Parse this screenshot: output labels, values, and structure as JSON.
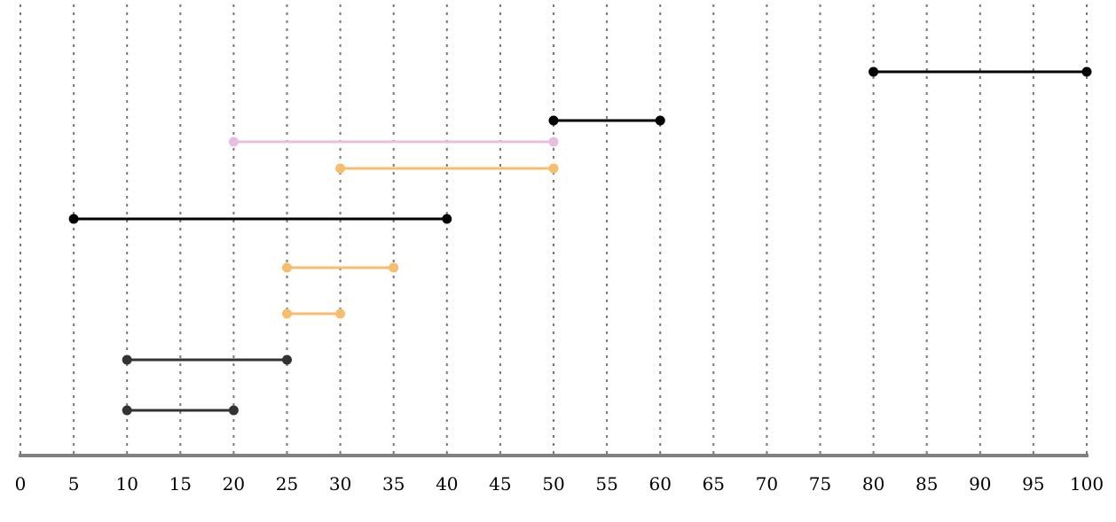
{
  "chart_data": {
    "type": "interval",
    "title": "",
    "xlabel": "",
    "ylabel": "",
    "xlim": [
      0,
      100
    ],
    "grid": "vertical-dotted",
    "x_ticks": [
      0,
      5,
      10,
      15,
      20,
      25,
      30,
      35,
      40,
      45,
      50,
      55,
      60,
      65,
      70,
      75,
      80,
      85,
      90,
      95,
      100
    ],
    "x_tick_labels": [
      "0",
      "5",
      "10",
      "15",
      "20",
      "25",
      "30",
      "35",
      "40",
      "45",
      "50",
      "55",
      "60",
      "65",
      "70",
      "75",
      "80",
      "85",
      "90",
      "95",
      "100"
    ],
    "intervals": [
      {
        "start": 80,
        "end": 100,
        "color": "#000000"
      },
      {
        "start": 50,
        "end": 60,
        "color": "#000000"
      },
      {
        "start": 20,
        "end": 50,
        "color": "#e8bddf"
      },
      {
        "start": 30,
        "end": 50,
        "color": "#f7bc6c"
      },
      {
        "start": 5,
        "end": 40,
        "color": "#000000"
      },
      {
        "start": 25,
        "end": 35,
        "color": "#f7bc6c"
      },
      {
        "start": 25,
        "end": 30,
        "color": "#f7bc6c"
      },
      {
        "start": 10,
        "end": 25,
        "color": "#333333"
      },
      {
        "start": 10,
        "end": 20,
        "color": "#333333"
      }
    ],
    "colors": {
      "grid": "#777777",
      "axis": "#808080",
      "tick_text": "#000000"
    }
  }
}
